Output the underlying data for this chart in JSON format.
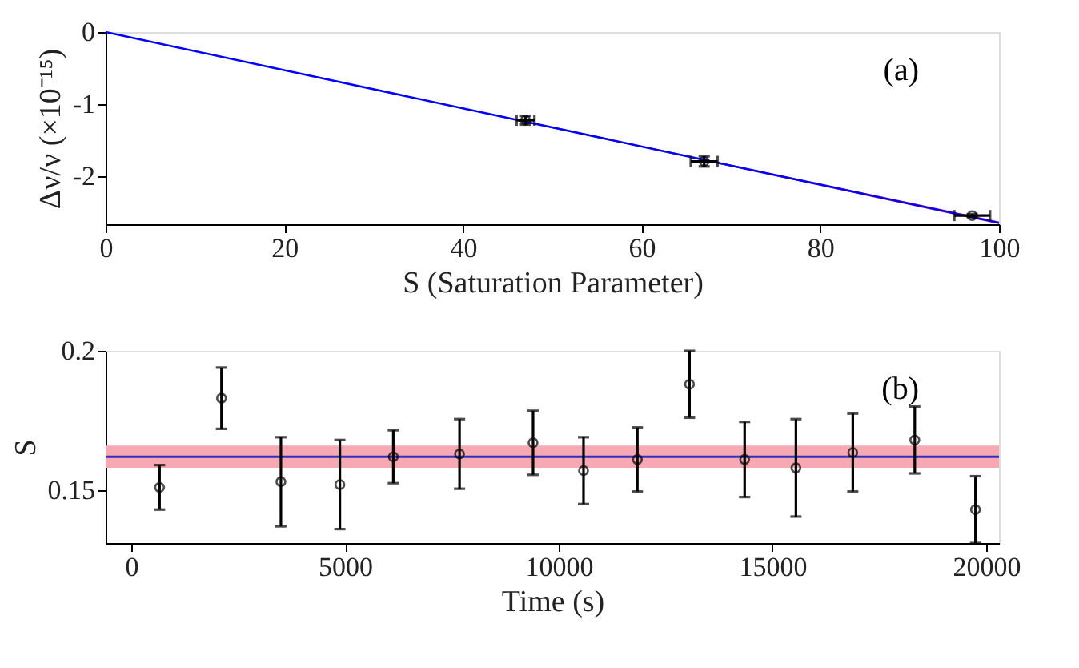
{
  "chart_data": [
    {
      "type": "line",
      "xlabel": "S (Saturation Parameter)",
      "ylabel": "Δν/ν (×10⁻¹⁵)",
      "annotations": [
        "(a)"
      ],
      "xlim": [
        0,
        100
      ],
      "ylim": [
        -2.66,
        0
      ],
      "xticks": [
        0,
        20,
        40,
        60,
        80,
        100
      ],
      "yticks": [
        0,
        -1,
        -2
      ],
      "grid": false,
      "series": [
        {
          "color": "#0000ff",
          "x": [
            0,
            100
          ],
          "values": [
            0,
            -2.64
          ],
          "lower": [
            0,
            -2.66
          ],
          "upper": [
            0,
            -2.62
          ]
        },
        {
          "type": "scatter",
          "color": "#000000",
          "marker": "circle",
          "x": [
            47,
            67,
            97
          ],
          "values": [
            -1.22,
            -1.79,
            -2.54
          ],
          "errors": [
            0.06,
            0.07,
            0.02
          ],
          "xerrors": [
            1,
            1.5,
            2
          ]
        }
      ]
    },
    {
      "type": "scatter",
      "xlabel": "Time (s)",
      "ylabel": "S",
      "annotations": [
        "(b)"
      ],
      "xlim": [
        -600,
        20300
      ],
      "ylim": [
        0.131,
        0.2
      ],
      "xticks": [
        0,
        5000,
        10000,
        15000,
        20000
      ],
      "yticks": [
        0.15,
        0.2
      ],
      "grid": false,
      "marker": "circle",
      "series": [
        {
          "color": "#000000",
          "x": [
            661,
            2110,
            3500,
            4880,
            6130,
            7680,
            9400,
            10580,
            11840,
            13060,
            14350,
            15550,
            16880,
            18330,
            19750
          ],
          "values": [
            0.151,
            0.183,
            0.153,
            0.152,
            0.162,
            0.163,
            0.167,
            0.157,
            0.161,
            0.188,
            0.161,
            0.158,
            0.1635,
            0.168,
            0.143
          ],
          "errors": [
            0.008,
            0.011,
            0.016,
            0.016,
            0.0095,
            0.0125,
            0.0115,
            0.012,
            0.0115,
            0.012,
            0.0135,
            0.0175,
            0.014,
            0.012,
            0.012
          ]
        }
      ],
      "bands": [
        {
          "axis": "y",
          "from": 0.158,
          "to": 0.166,
          "color": "#f7a9b3"
        }
      ],
      "ref_lines": [
        {
          "axis": "y",
          "value": 0.162,
          "color": "#3030c0",
          "line_style": "solid"
        }
      ]
    }
  ]
}
